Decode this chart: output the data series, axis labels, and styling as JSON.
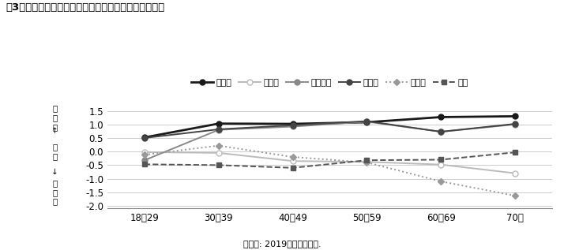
{
  "title": "図3　年齢層別の各政党の保革イデオロギー軸上の位置",
  "xlabel_note": "データ: 2019年有権者調査.",
  "categories": [
    "18～29",
    "30～39",
    "40～49",
    "50～59",
    "60～69",
    "70～"
  ],
  "ylim": [
    -2.1,
    1.75
  ],
  "yticks": [
    -2.0,
    -1.5,
    -1.0,
    -0.5,
    0.0,
    0.5,
    1.0,
    1.5
  ],
  "ylabel_labels": [
    {
      "text": "保\n守\n的",
      "y_data": 1.25,
      "va": "center"
    },
    {
      "text": "↑",
      "y_data": 0.75,
      "va": "center"
    },
    {
      "text": "中\n間",
      "y_data": 0.0,
      "va": "center"
    },
    {
      "text": "↓",
      "y_data": -0.75,
      "va": "center"
    },
    {
      "text": "革\n新\n的",
      "y_data": -1.5,
      "va": "center"
    }
  ],
  "series": [
    {
      "name": "自民党",
      "values": [
        0.52,
        1.03,
        1.02,
        1.08,
        1.27,
        1.3
      ],
      "color": "#1a1a1a",
      "linestyle": "solid",
      "marker": "o",
      "markersize": 5,
      "linewidth": 2.0,
      "markerfacecolor": "#1a1a1a",
      "markeredgecolor": "#1a1a1a"
    },
    {
      "name": "立民党",
      "values": [
        -0.02,
        -0.05,
        -0.35,
        -0.38,
        -0.48,
        -0.8
      ],
      "color": "#bbbbbb",
      "linestyle": "solid",
      "marker": "o",
      "markersize": 5,
      "linewidth": 1.4,
      "markerfacecolor": "#ffffff",
      "markeredgecolor": "#bbbbbb"
    },
    {
      "name": "国民民主",
      "values": [
        -0.32,
        0.8,
        0.92,
        1.1,
        0.73,
        1.0
      ],
      "color": "#888888",
      "linestyle": "solid",
      "marker": "o",
      "markersize": 5,
      "linewidth": 1.4,
      "markerfacecolor": "#888888",
      "markeredgecolor": "#888888"
    },
    {
      "name": "公明党",
      "values": [
        0.5,
        0.82,
        0.97,
        1.12,
        0.73,
        1.02
      ],
      "color": "#444444",
      "linestyle": "solid",
      "marker": "o",
      "markersize": 5,
      "linewidth": 1.4,
      "markerfacecolor": "#444444",
      "markeredgecolor": "#444444"
    },
    {
      "name": "共産党",
      "values": [
        -0.12,
        0.22,
        -0.2,
        -0.4,
        -1.1,
        -1.63
      ],
      "color": "#999999",
      "linestyle": "dotted",
      "marker": "D",
      "markersize": 4,
      "linewidth": 1.4,
      "markerfacecolor": "#999999",
      "markeredgecolor": "#999999"
    },
    {
      "name": "維新",
      "values": [
        -0.47,
        -0.5,
        -0.6,
        -0.32,
        -0.3,
        -0.03
      ],
      "color": "#555555",
      "linestyle": "dashed",
      "marker": "s",
      "markersize": 5,
      "linewidth": 1.4,
      "markerfacecolor": "#555555",
      "markeredgecolor": "#555555"
    }
  ]
}
